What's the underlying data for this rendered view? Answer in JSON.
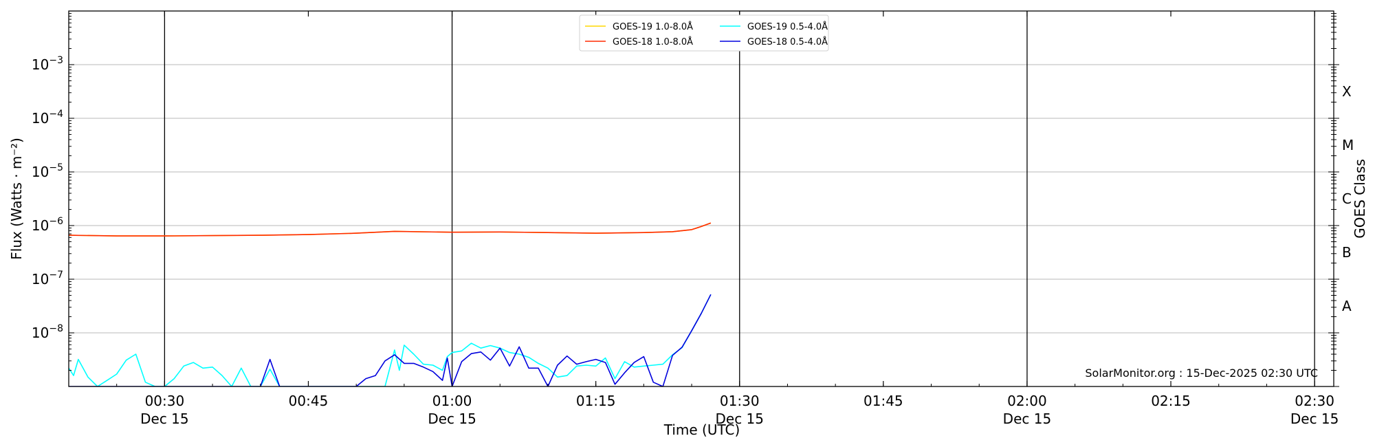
{
  "chart_data": {
    "type": "line",
    "title": "",
    "xlabel": "Time (UTC)",
    "ylabel": "Flux (Watts · m⁻²)",
    "ylabel_right": "GOES Class",
    "yscale": "log",
    "xlim": [
      "00:20",
      "02:32"
    ],
    "ylim": [
      1e-09,
      0.01
    ],
    "grid": {
      "horizontal": true,
      "vertical_major": true
    },
    "x_ticks": [
      {
        "t": "00:30",
        "label": "00:30",
        "date": "Dec 15",
        "major": true
      },
      {
        "t": "00:45",
        "label": "00:45",
        "date": "",
        "major": false
      },
      {
        "t": "01:00",
        "label": "01:00",
        "date": "Dec 15",
        "major": true
      },
      {
        "t": "01:15",
        "label": "01:15",
        "date": "",
        "major": false
      },
      {
        "t": "01:30",
        "label": "01:30",
        "date": "Dec 15",
        "major": true
      },
      {
        "t": "01:45",
        "label": "01:45",
        "date": "",
        "major": false
      },
      {
        "t": "02:00",
        "label": "02:00",
        "date": "Dec 15",
        "major": true
      },
      {
        "t": "02:15",
        "label": "02:15",
        "date": "",
        "major": false
      },
      {
        "t": "02:30",
        "label": "02:30",
        "date": "Dec 15",
        "major": true
      }
    ],
    "y_ticks": [
      {
        "exp": -8,
        "label": "10",
        "sup": "−8"
      },
      {
        "exp": -7,
        "label": "10",
        "sup": "−7"
      },
      {
        "exp": -6,
        "label": "10",
        "sup": "−6"
      },
      {
        "exp": -5,
        "label": "10",
        "sup": "−5"
      },
      {
        "exp": -4,
        "label": "10",
        "sup": "−4"
      },
      {
        "exp": -3,
        "label": "10",
        "sup": "−3"
      }
    ],
    "goes_classes": [
      {
        "label": "A",
        "exp": -7.5
      },
      {
        "label": "B",
        "exp": -6.5
      },
      {
        "label": "C",
        "exp": -5.5
      },
      {
        "label": "M",
        "exp": -4.5
      },
      {
        "label": "X",
        "exp": -3.5
      }
    ],
    "legend": {
      "placement": "top-center",
      "columns": 2
    },
    "series": [
      {
        "name": "GOES-19 1.0-8.0Å",
        "color": "#ffd700",
        "time": [
          "00:20",
          "00:25",
          "00:30",
          "00:35",
          "00:40",
          "00:45",
          "00:50",
          "00:54",
          "01:00",
          "01:05",
          "01:10",
          "01:15",
          "01:20",
          "01:23",
          "01:25",
          "01:26",
          "01:27"
        ],
        "flux": [
          6.6e-07,
          6.4e-07,
          6.4e-07,
          6.5e-07,
          6.6e-07,
          6.8e-07,
          7.2e-07,
          7.8e-07,
          7.5e-07,
          7.6e-07,
          7.4e-07,
          7.2e-07,
          7.4e-07,
          7.7e-07,
          8.4e-07,
          9.6e-07,
          1.12e-06
        ]
      },
      {
        "name": "GOES-18 1.0-8.0Å",
        "color": "#ff2a00",
        "time": [
          "00:20",
          "00:25",
          "00:30",
          "00:35",
          "00:40",
          "00:45",
          "00:50",
          "00:54",
          "01:00",
          "01:05",
          "01:10",
          "01:15",
          "01:20",
          "01:23",
          "01:25",
          "01:26",
          "01:27"
        ],
        "flux": [
          6.6e-07,
          6.4e-07,
          6.4e-07,
          6.5e-07,
          6.6e-07,
          6.8e-07,
          7.2e-07,
          7.8e-07,
          7.5e-07,
          7.6e-07,
          7.4e-07,
          7.2e-07,
          7.4e-07,
          7.7e-07,
          8.4e-07,
          9.6e-07,
          1.12e-06
        ]
      },
      {
        "name": "GOES-19 0.5-4.0Å",
        "color": "#00ffff",
        "time": [
          "00:20",
          "00:20:30",
          "00:21",
          "00:22",
          "00:23",
          "00:24",
          "00:25",
          "00:26",
          "00:27",
          "00:28",
          "00:29",
          "00:30",
          "00:31",
          "00:32",
          "00:33",
          "00:34",
          "00:35",
          "00:36",
          "00:37",
          "00:38",
          "00:39",
          "00:40",
          "00:41",
          "00:42",
          "00:43",
          "00:44",
          "00:45",
          "00:53",
          "00:54",
          "00:54:30",
          "00:55",
          "00:56",
          "00:57",
          "00:58",
          "00:59",
          "00:59:30",
          "01:00",
          "01:01",
          "01:02",
          "01:03",
          "01:04",
          "01:05",
          "01:06",
          "01:07",
          "01:08",
          "01:09",
          "01:10",
          "01:11",
          "01:12",
          "01:13",
          "01:14",
          "01:15",
          "01:16",
          "01:17",
          "01:18",
          "01:19",
          "01:20",
          "01:21",
          "01:22",
          "01:23",
          "01:24",
          "01:25",
          "01:26",
          "01:27"
        ],
        "flux": [
          2.2e-09,
          1.6e-09,
          3.2e-09,
          1.5e-09,
          1e-09,
          1.3e-09,
          1.7e-09,
          3.1e-09,
          4e-09,
          1.2e-09,
          1e-09,
          1e-09,
          1.4e-09,
          2.4e-09,
          2.8e-09,
          2.2e-09,
          2.3e-09,
          1.6e-09,
          1e-09,
          2.2e-09,
          1e-09,
          1e-09,
          2.1e-09,
          1e-09,
          1e-09,
          1e-09,
          1e-09,
          1e-09,
          4.8e-09,
          2e-09,
          5.9e-09,
          4e-09,
          2.6e-09,
          2.5e-09,
          2e-09,
          3.6e-09,
          4.3e-09,
          4.6e-09,
          6.4e-09,
          5.2e-09,
          5.8e-09,
          5.2e-09,
          4.3e-09,
          4e-09,
          3.5e-09,
          2.7e-09,
          2.2e-09,
          1.5e-09,
          1.6e-09,
          2.4e-09,
          2.5e-09,
          2.4e-09,
          3.4e-09,
          1.4e-09,
          2.9e-09,
          2.3e-09,
          2.4e-09,
          2.5e-09,
          2.6e-09,
          3.9e-09,
          5.3e-09,
          1.1e-08,
          2.3e-08,
          5.2e-08
        ]
      },
      {
        "name": "GOES-18 0.5-4.0Å",
        "color": "#0000dd",
        "time": [
          "00:20",
          "00:35",
          "00:36",
          "00:37",
          "00:38",
          "00:39",
          "00:40",
          "00:41",
          "00:42",
          "00:43",
          "00:44",
          "00:45",
          "00:50",
          "00:51",
          "00:52",
          "00:53",
          "00:54",
          "00:55",
          "00:56",
          "00:57",
          "00:58",
          "00:59",
          "00:59:30",
          "01:00",
          "01:01",
          "01:02",
          "01:03",
          "01:04",
          "01:05",
          "01:06",
          "01:07",
          "01:08",
          "01:09",
          "01:10",
          "01:11",
          "01:12",
          "01:13",
          "01:14",
          "01:15",
          "01:16",
          "01:17",
          "01:18",
          "01:19",
          "01:20",
          "01:21",
          "01:22",
          "01:23",
          "01:24",
          "01:25",
          "01:26",
          "01:27"
        ],
        "flux": [
          1e-09,
          1e-09,
          1e-09,
          1e-09,
          1e-09,
          1e-09,
          1e-09,
          3.2e-09,
          1e-09,
          1e-09,
          1e-09,
          1e-09,
          1e-09,
          1.4e-09,
          1.6e-09,
          3e-09,
          3.9e-09,
          2.7e-09,
          2.7e-09,
          2.3e-09,
          1.9e-09,
          1.3e-09,
          3.4e-09,
          1e-09,
          2.9e-09,
          4.1e-09,
          4.4e-09,
          3.1e-09,
          5.2e-09,
          2.4e-09,
          5.5e-09,
          2.2e-09,
          2.2e-09,
          1e-09,
          2.5e-09,
          3.7e-09,
          2.6e-09,
          2.9e-09,
          3.2e-09,
          2.8e-09,
          1.1e-09,
          1.8e-09,
          2.8e-09,
          3.6e-09,
          1.2e-09,
          1e-09,
          3.8e-09,
          5.4e-09,
          1.1e-08,
          2.3e-08,
          5.2e-08
        ]
      }
    ],
    "annotation": "SolarMonitor.org : 15-Dec-2025 02:30 UTC"
  }
}
